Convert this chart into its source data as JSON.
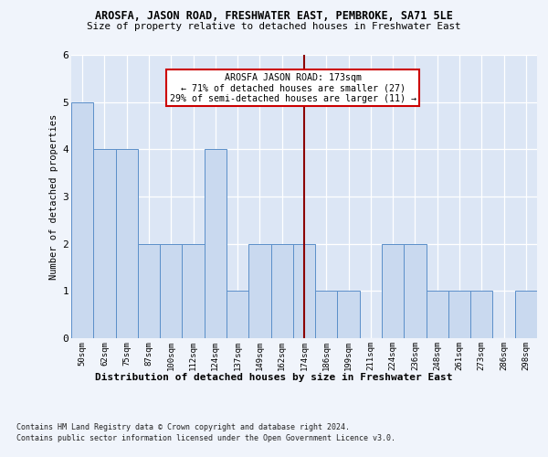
{
  "title1": "AROSFA, JASON ROAD, FRESHWATER EAST, PEMBROKE, SA71 5LE",
  "title2": "Size of property relative to detached houses in Freshwater East",
  "xlabel": "Distribution of detached houses by size in Freshwater East",
  "ylabel": "Number of detached properties",
  "categories": [
    "50sqm",
    "62sqm",
    "75sqm",
    "87sqm",
    "100sqm",
    "112sqm",
    "124sqm",
    "137sqm",
    "149sqm",
    "162sqm",
    "174sqm",
    "186sqm",
    "199sqm",
    "211sqm",
    "224sqm",
    "236sqm",
    "248sqm",
    "261sqm",
    "273sqm",
    "286sqm",
    "298sqm"
  ],
  "values": [
    5,
    4,
    4,
    2,
    2,
    2,
    4,
    1,
    2,
    2,
    2,
    1,
    1,
    0,
    2,
    2,
    1,
    1,
    1,
    0,
    1
  ],
  "bar_color": "#c9d9ef",
  "bar_edge_color": "#5b8fc9",
  "vline_index": 10,
  "vline_color": "#8b0000",
  "annotation_text": "AROSFA JASON ROAD: 173sqm\n← 71% of detached houses are smaller (27)\n29% of semi-detached houses are larger (11) →",
  "annotation_box_color": "#ffffff",
  "annotation_box_edge": "#cc0000",
  "ylim": [
    0,
    6
  ],
  "yticks": [
    0,
    1,
    2,
    3,
    4,
    5,
    6
  ],
  "footer1": "Contains HM Land Registry data © Crown copyright and database right 2024.",
  "footer2": "Contains public sector information licensed under the Open Government Licence v3.0.",
  "bg_color": "#f0f4fb",
  "plot_bg_color": "#dce6f5"
}
